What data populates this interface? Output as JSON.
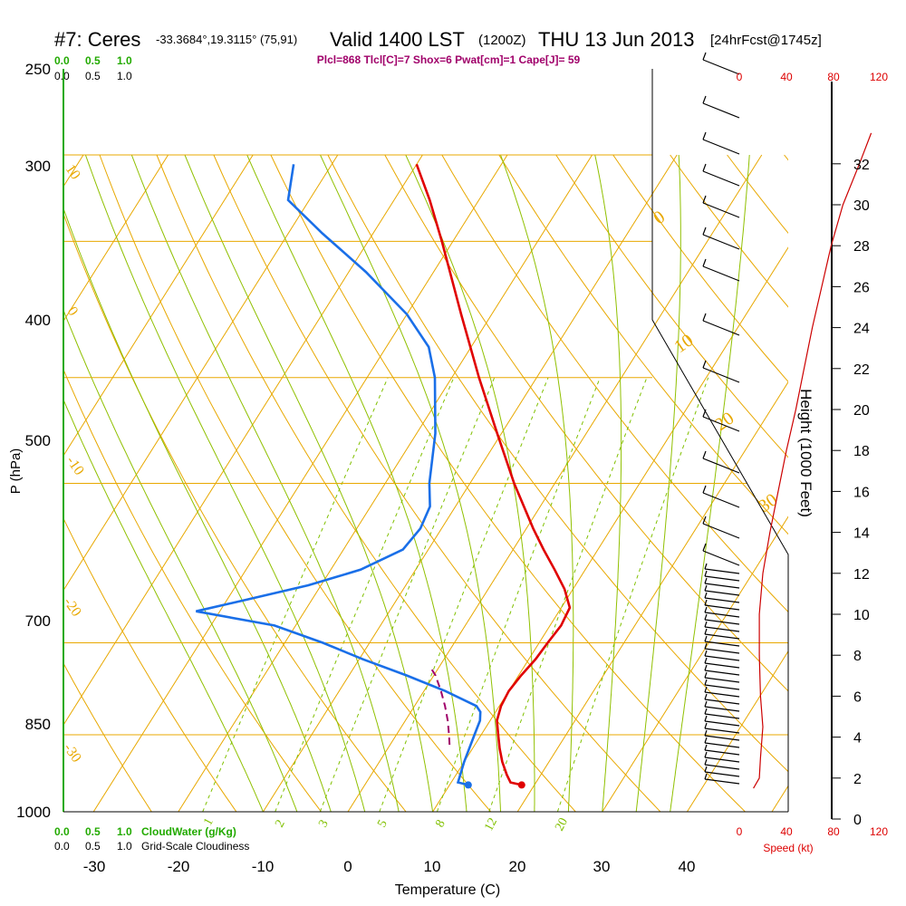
{
  "header": {
    "station": "#7: Ceres",
    "coords": "-33.3684°,19.3115° (75,91)",
    "valid": "Valid 1400 LST",
    "zulu": "(1200Z)",
    "date": "THU 13 Jun 2013",
    "forecast": "[24hrFcst@1745z]",
    "indices": "Plcl=868 Tlcl[C]=7 Shox=6 Pwat[cm]=1 Cape[J]= 59"
  },
  "colors": {
    "isotherm": "#e8a800",
    "adiabat": "#90c000",
    "mixing_ratio": "#80c000",
    "temperature": "#e00000",
    "dewpoint": "#1a6fe8",
    "parcel": "#a0006a",
    "wind_speed": "#cc0000",
    "cloud_label": "#22aa00"
  },
  "chart_data": {
    "type": "line",
    "xlabel": "Temperature (C)",
    "ylabel": "P (hPa)",
    "y2label": "Height (1000 Feet)",
    "xlim": [
      -35,
      47
    ],
    "ylim": [
      1000,
      250
    ],
    "x_ticks": [
      "-30",
      "-20",
      "-10",
      "0",
      "10",
      "20",
      "30",
      "40"
    ],
    "pressure_ticks": [
      "250",
      "300",
      "400",
      "500",
      "700",
      "850",
      "1000"
    ],
    "height_ticks": [
      "0",
      "2",
      "4",
      "6",
      "8",
      "10",
      "12",
      "14",
      "16",
      "18",
      "20",
      "22",
      "24",
      "26",
      "28",
      "30",
      "32"
    ],
    "skew": true,
    "temperature": [
      {
        "p": 945,
        "t": 18.5
      },
      {
        "p": 940,
        "t": 17.0
      },
      {
        "p": 925,
        "t": 16.0
      },
      {
        "p": 900,
        "t": 14.5
      },
      {
        "p": 875,
        "t": 13.2
      },
      {
        "p": 850,
        "t": 12.0
      },
      {
        "p": 825,
        "t": 10.8
      },
      {
        "p": 800,
        "t": 10.2
      },
      {
        "p": 775,
        "t": 10.0
      },
      {
        "p": 750,
        "t": 10.3
      },
      {
        "p": 725,
        "t": 10.8
      },
      {
        "p": 700,
        "t": 11.0
      },
      {
        "p": 675,
        "t": 11.3
      },
      {
        "p": 650,
        "t": 11.0
      },
      {
        "p": 625,
        "t": 9.0
      },
      {
        "p": 600,
        "t": 6.4
      },
      {
        "p": 575,
        "t": 3.6
      },
      {
        "p": 550,
        "t": 0.8
      },
      {
        "p": 500,
        "t": -4.8
      },
      {
        "p": 450,
        "t": -10.5
      },
      {
        "p": 400,
        "t": -16.8
      },
      {
        "p": 350,
        "t": -23.6
      },
      {
        "p": 300,
        "t": -31.3
      },
      {
        "p": 275,
        "t": -35.8
      },
      {
        "p": 255,
        "t": -40.0
      }
    ],
    "dewpoint": [
      {
        "p": 945,
        "t": 12.2
      },
      {
        "p": 940,
        "t": 10.8
      },
      {
        "p": 925,
        "t": 10.5
      },
      {
        "p": 900,
        "t": 10.0
      },
      {
        "p": 875,
        "t": 9.6
      },
      {
        "p": 850,
        "t": 9.2
      },
      {
        "p": 825,
        "t": 8.8
      },
      {
        "p": 810,
        "t": 8.2
      },
      {
        "p": 800,
        "t": 7.3
      },
      {
        "p": 775,
        "t": 2.5
      },
      {
        "p": 750,
        "t": -3.2
      },
      {
        "p": 725,
        "t": -9.5
      },
      {
        "p": 700,
        "t": -15.5
      },
      {
        "p": 675,
        "t": -22.5
      },
      {
        "p": 655,
        "t": -32.8
      },
      {
        "p": 640,
        "t": -28.0
      },
      {
        "p": 620,
        "t": -21.5
      },
      {
        "p": 600,
        "t": -16.5
      },
      {
        "p": 575,
        "t": -13.0
      },
      {
        "p": 550,
        "t": -12.5
      },
      {
        "p": 525,
        "t": -13.0
      },
      {
        "p": 500,
        "t": -14.8
      },
      {
        "p": 450,
        "t": -17.8
      },
      {
        "p": 400,
        "t": -22.0
      },
      {
        "p": 375,
        "t": -25.0
      },
      {
        "p": 350,
        "t": -30.0
      },
      {
        "p": 320,
        "t": -38.0
      },
      {
        "p": 295,
        "t": -46.0
      },
      {
        "p": 275,
        "t": -52.5
      },
      {
        "p": 255,
        "t": -54.5
      }
    ],
    "parcel": [
      {
        "p": 868,
        "t": 7.0
      },
      {
        "p": 850,
        "t": 6.2
      },
      {
        "p": 825,
        "t": 5.0
      },
      {
        "p": 800,
        "t": 3.6
      },
      {
        "p": 775,
        "t": 2.0
      },
      {
        "p": 750,
        "t": 0.2
      },
      {
        "p": 735,
        "t": -1.2
      }
    ],
    "surface_temperature": 18.5,
    "surface_dewpoint": 12.2,
    "isotherm_labels": [
      "10",
      "0",
      "-10",
      "-20",
      "-30",
      "0",
      "10",
      "20",
      "30"
    ],
    "mixing_ratio_labels": [
      "1",
      "2",
      "3",
      "5",
      "8",
      "12",
      "20"
    ],
    "wind_speed_profile": [
      {
        "h": 1.5,
        "kt": 12
      },
      {
        "h": 2.0,
        "kt": 17
      },
      {
        "h": 3.0,
        "kt": 18
      },
      {
        "h": 4.5,
        "kt": 20
      },
      {
        "h": 6.0,
        "kt": 18
      },
      {
        "h": 8.0,
        "kt": 17
      },
      {
        "h": 10.0,
        "kt": 17
      },
      {
        "h": 12.0,
        "kt": 20
      },
      {
        "h": 14.0,
        "kt": 26
      },
      {
        "h": 16.0,
        "kt": 33
      },
      {
        "h": 18.0,
        "kt": 40
      },
      {
        "h": 20.0,
        "kt": 48
      },
      {
        "h": 22.0,
        "kt": 55
      },
      {
        "h": 24.0,
        "kt": 62
      },
      {
        "h": 26.0,
        "kt": 70
      },
      {
        "h": 28.0,
        "kt": 78
      },
      {
        "h": 30.0,
        "kt": 88
      },
      {
        "h": 32.0,
        "kt": 102
      },
      {
        "h": 33.5,
        "kt": 112
      }
    ],
    "wind_speed_ticks": [
      "0",
      "40",
      "80",
      "120"
    ],
    "wind_speed_label": "Speed (kt)",
    "cloud_scale_ticks": [
      "0.0",
      "0.5",
      "1.0"
    ],
    "cloudwater_label": "CloudWater (g/Kg)",
    "cloudiness_label": "Grid-Scale Cloudiness"
  }
}
